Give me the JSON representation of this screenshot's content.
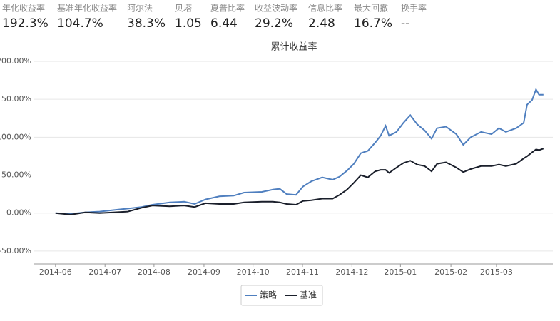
{
  "stats": [
    {
      "label": "年化收益率",
      "value": "192.3%"
    },
    {
      "label": "基准年化收益率",
      "value": "104.7%"
    },
    {
      "label": "阿尔法",
      "value": "38.3%"
    },
    {
      "label": "贝塔",
      "value": "1.05"
    },
    {
      "label": "夏普比率",
      "value": "6.44"
    },
    {
      "label": "收益波动率",
      "value": "29.2%"
    },
    {
      "label": "信息比率",
      "value": "2.48"
    },
    {
      "label": "最大回撤",
      "value": "16.7%"
    },
    {
      "label": "换手率",
      "value": "--"
    }
  ],
  "chart_data": {
    "type": "line",
    "title": "累计收益率",
    "x": [
      0,
      0.31,
      0.6,
      0.89,
      1.17,
      1.46,
      1.74,
      1.96,
      2.31,
      2.6,
      2.81,
      3.03,
      3.31,
      3.6,
      3.81,
      4.17,
      4.39,
      4.53,
      4.67,
      4.86,
      5.0,
      5.17,
      5.39,
      5.6,
      5.74,
      5.89,
      6.03,
      6.17,
      6.31,
      6.46,
      6.57,
      6.67,
      6.74,
      6.89,
      7.03,
      7.17,
      7.31,
      7.46,
      7.6,
      7.71,
      7.89,
      8.1,
      8.24,
      8.39,
      8.6,
      8.81,
      8.96,
      9.1,
      9.31,
      9.46,
      9.53,
      9.63,
      9.71,
      9.77,
      9.86
    ],
    "series": [
      {
        "name": "策略",
        "color": "#4f7fbf",
        "values": [
          0,
          -1,
          1,
          2,
          4,
          6,
          8,
          11,
          14,
          15,
          12,
          18,
          22,
          23,
          27,
          28,
          31,
          32,
          25,
          24,
          35,
          42,
          47,
          44,
          48,
          56,
          65,
          79,
          82,
          93,
          102,
          115,
          102,
          107,
          119,
          129,
          117,
          109,
          98,
          112,
          114,
          104,
          90,
          100,
          107,
          104,
          112,
          107,
          112,
          119,
          143,
          149,
          163,
          156,
          156
        ]
      },
      {
        "name": "基准",
        "color": "#1a1f2b",
        "values": [
          0,
          -2,
          1,
          0,
          1,
          2,
          7,
          10,
          9,
          10,
          8,
          13,
          12,
          12,
          14,
          15,
          15,
          14,
          12,
          11,
          16,
          17,
          19,
          19,
          24,
          31,
          40,
          50,
          47,
          55,
          57,
          57,
          53,
          60,
          66,
          69,
          64,
          62,
          55,
          65,
          67,
          60,
          54,
          58,
          62,
          62,
          64,
          62,
          65,
          72,
          75,
          80,
          84,
          83,
          85
        ]
      }
    ],
    "xlim": [
      -0.43,
      10.05
    ],
    "xticks": [
      {
        "value": 0,
        "label": "2014-06"
      },
      {
        "value": 1,
        "label": "2014-07"
      },
      {
        "value": 1.99,
        "label": "2014-08"
      },
      {
        "value": 3,
        "label": "2014-09"
      },
      {
        "value": 3.99,
        "label": "2014-10"
      },
      {
        "value": 4.99,
        "label": "2014-11"
      },
      {
        "value": 5.99,
        "label": "2014-12"
      },
      {
        "value": 6.97,
        "label": "2015-01"
      },
      {
        "value": 7.99,
        "label": "2015-02"
      },
      {
        "value": 8.91,
        "label": "2015-03"
      }
    ],
    "ylim": [
      -67,
      200
    ],
    "yticks": [
      {
        "value": -50,
        "label": "-50.00%"
      },
      {
        "value": 0,
        "label": "0.00%"
      },
      {
        "value": 50,
        "label": "50.00%"
      },
      {
        "value": 100,
        "label": "100.00%"
      },
      {
        "value": 150,
        "label": "150.00%"
      },
      {
        "value": 200,
        "label": "200.00%"
      }
    ],
    "grid": true,
    "legend": "bottom"
  }
}
